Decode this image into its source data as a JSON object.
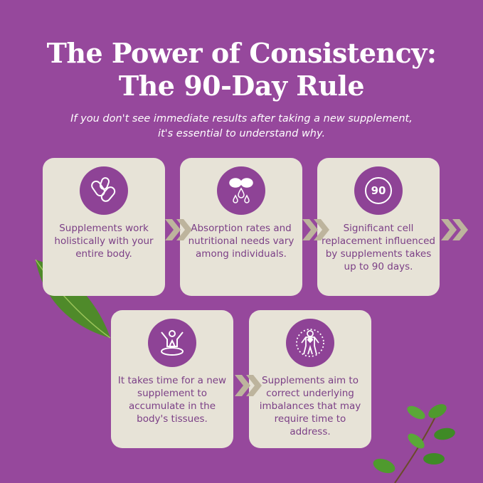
{
  "title": {
    "line1": "The Power of Consistency:",
    "line2": "The 90-Day Rule"
  },
  "subtitle": {
    "line1": "If you don't see immediate results after taking a new supplement,",
    "line2": "it's essential to understand why."
  },
  "colors": {
    "background": "#96489c",
    "card": "#e7e3d7",
    "icon_circle": "#8e4396",
    "text": "#7b3f86",
    "chevron": "#bdb49d"
  },
  "cards": [
    {
      "icon": "pills-icon",
      "text": "Supplements work holistically with your entire body."
    },
    {
      "icon": "capsule-drops-icon",
      "text": "Absorption rates and nutritional needs vary among individuals."
    },
    {
      "icon": "ninety-badge-icon",
      "icon_text": "90",
      "text": "Significant cell replacement influenced by supplements takes up to 90 days."
    },
    {
      "icon": "person-absorb-icon",
      "text": "It takes time for a new supplement to accumulate in the body's tissues."
    },
    {
      "icon": "person-heart-icon",
      "text": "Supplements aim to correct underlying imbalances that may require time to address."
    }
  ]
}
